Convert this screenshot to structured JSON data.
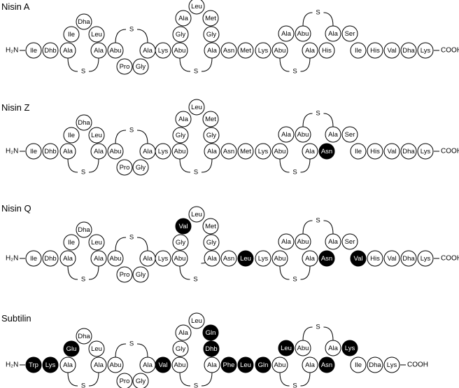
{
  "peptides": [
    {
      "title": "Nisin A",
      "n_terminus": "H₂N",
      "c_terminus": "COOH",
      "bridge_label": "S",
      "residues": [
        {
          "label": "Ile",
          "filled": false
        },
        {
          "label": "Dhb",
          "filled": false
        },
        {
          "label": "Ala",
          "filled": false
        },
        {
          "label": "Ile",
          "filled": false
        },
        {
          "label": "Dha",
          "filled": false
        },
        {
          "label": "Leu",
          "filled": false
        },
        {
          "label": "Ala",
          "filled": false
        },
        {
          "label": "Abu",
          "filled": false
        },
        {
          "label": "Pro",
          "filled": false
        },
        {
          "label": "Gly",
          "filled": false
        },
        {
          "label": "Ala",
          "filled": false
        },
        {
          "label": "Lys",
          "filled": false
        },
        {
          "label": "Abu",
          "filled": false
        },
        {
          "label": "Gly",
          "filled": false
        },
        {
          "label": "Ala",
          "filled": false
        },
        {
          "label": "Leu",
          "filled": false
        },
        {
          "label": "Met",
          "filled": false
        },
        {
          "label": "Gly",
          "filled": false
        },
        {
          "label": "Ala",
          "filled": false
        },
        {
          "label": "Asn",
          "filled": false
        },
        {
          "label": "Met",
          "filled": false
        },
        {
          "label": "Lys",
          "filled": false
        },
        {
          "label": "Abu",
          "filled": false
        },
        {
          "label": "Ala",
          "filled": false
        },
        {
          "label": "Abu",
          "filled": false
        },
        {
          "label": "Ala",
          "filled": false
        },
        {
          "label": "His",
          "filled": false
        },
        {
          "label": "Ala",
          "filled": false
        },
        {
          "label": "Ser",
          "filled": false
        },
        {
          "label": "Ile",
          "filled": false
        },
        {
          "label": "His",
          "filled": false
        },
        {
          "label": "Val",
          "filled": false
        },
        {
          "label": "Dha",
          "filled": false
        },
        {
          "label": "Lys",
          "filled": false
        }
      ]
    },
    {
      "title": "Nisin Z",
      "n_terminus": "H₂N",
      "c_terminus": "COOH",
      "bridge_label": "S",
      "residues": [
        {
          "label": "Ile",
          "filled": false
        },
        {
          "label": "Dhb",
          "filled": false
        },
        {
          "label": "Ala",
          "filled": false
        },
        {
          "label": "Ile",
          "filled": false
        },
        {
          "label": "Dha",
          "filled": false
        },
        {
          "label": "Leu",
          "filled": false
        },
        {
          "label": "Ala",
          "filled": false
        },
        {
          "label": "Abu",
          "filled": false
        },
        {
          "label": "Pro",
          "filled": false
        },
        {
          "label": "Gly",
          "filled": false
        },
        {
          "label": "Ala",
          "filled": false
        },
        {
          "label": "Lys",
          "filled": false
        },
        {
          "label": "Abu",
          "filled": false
        },
        {
          "label": "Gly",
          "filled": false
        },
        {
          "label": "Ala",
          "filled": false
        },
        {
          "label": "Leu",
          "filled": false
        },
        {
          "label": "Met",
          "filled": false
        },
        {
          "label": "Gly",
          "filled": false
        },
        {
          "label": "Ala",
          "filled": false
        },
        {
          "label": "Asn",
          "filled": false
        },
        {
          "label": "Met",
          "filled": false
        },
        {
          "label": "Lys",
          "filled": false
        },
        {
          "label": "Abu",
          "filled": false
        },
        {
          "label": "Ala",
          "filled": false
        },
        {
          "label": "Abu",
          "filled": false
        },
        {
          "label": "Ala",
          "filled": false
        },
        {
          "label": "Asn",
          "filled": true
        },
        {
          "label": "Ala",
          "filled": false
        },
        {
          "label": "Ser",
          "filled": false
        },
        {
          "label": "Ile",
          "filled": false
        },
        {
          "label": "His",
          "filled": false
        },
        {
          "label": "Val",
          "filled": false
        },
        {
          "label": "Dha",
          "filled": false
        },
        {
          "label": "Lys",
          "filled": false
        }
      ]
    },
    {
      "title": "Nisin Q",
      "n_terminus": "H₂N",
      "c_terminus": "COOH",
      "bridge_label": "S",
      "residues": [
        {
          "label": "Ile",
          "filled": false
        },
        {
          "label": "Dhb",
          "filled": false
        },
        {
          "label": "Ala",
          "filled": false
        },
        {
          "label": "Ile",
          "filled": false
        },
        {
          "label": "Dha",
          "filled": false
        },
        {
          "label": "Leu",
          "filled": false
        },
        {
          "label": "Ala",
          "filled": false
        },
        {
          "label": "Abu",
          "filled": false
        },
        {
          "label": "Pro",
          "filled": false
        },
        {
          "label": "Gly",
          "filled": false
        },
        {
          "label": "Ala",
          "filled": false
        },
        {
          "label": "Lys",
          "filled": false
        },
        {
          "label": "Abu",
          "filled": false
        },
        {
          "label": "Gly",
          "filled": false
        },
        {
          "label": "Ala",
          "filled": false
        },
        {
          "label": "Val",
          "filled": true
        },
        {
          "label": "Leu",
          "filled": false
        },
        {
          "label": "Met",
          "filled": false
        },
        {
          "label": "Gly",
          "filled": false
        },
        {
          "label": "Ala",
          "filled": false
        },
        {
          "label": "Asn",
          "filled": false
        },
        {
          "label": "Leu",
          "filled": true
        },
        {
          "label": "Lys",
          "filled": false
        },
        {
          "label": "Abu",
          "filled": false
        },
        {
          "label": "Ala",
          "filled": false
        },
        {
          "label": "Abu",
          "filled": false
        },
        {
          "label": "Ala",
          "filled": false
        },
        {
          "label": "Asn",
          "filled": true
        },
        {
          "label": "Ala",
          "filled": false
        },
        {
          "label": "Ser",
          "filled": false
        },
        {
          "label": "Val",
          "filled": true
        },
        {
          "label": "His",
          "filled": false
        },
        {
          "label": "Val",
          "filled": false
        },
        {
          "label": "Dha",
          "filled": false
        },
        {
          "label": "Lys",
          "filled": false
        }
      ]
    },
    {
      "title": "Subtilin",
      "n_terminus": "H₂N",
      "c_terminus": "COOH",
      "bridge_label": "S",
      "residues": [
        {
          "label": "Trp",
          "filled": true
        },
        {
          "label": "Lys",
          "filled": true
        },
        {
          "label": "Ala",
          "filled": false
        },
        {
          "label": "Glu",
          "filled": true
        },
        {
          "label": "Dha",
          "filled": false
        },
        {
          "label": "Leu",
          "filled": false
        },
        {
          "label": "Ala",
          "filled": false
        },
        {
          "label": "Abu",
          "filled": false
        },
        {
          "label": "Pro",
          "filled": false
        },
        {
          "label": "Gly",
          "filled": false
        },
        {
          "label": "Ala",
          "filled": false
        },
        {
          "label": "Val",
          "filled": true
        },
        {
          "label": "Abu",
          "filled": false
        },
        {
          "label": "Gly",
          "filled": false
        },
        {
          "label": "Ala",
          "filled": false
        },
        {
          "label": "Leu",
          "filled": false
        },
        {
          "label": "Gln",
          "filled": true
        },
        {
          "label": "Dhb",
          "filled": true
        },
        {
          "label": "Ala",
          "filled": false
        },
        {
          "label": "Phe",
          "filled": true
        },
        {
          "label": "Leu",
          "filled": true
        },
        {
          "label": "Gln",
          "filled": true
        },
        {
          "label": "Abu",
          "filled": false
        },
        {
          "label": "Leu",
          "filled": true
        },
        {
          "label": "Abu",
          "filled": false
        },
        {
          "label": "Ala",
          "filled": false
        },
        {
          "label": "Asn",
          "filled": true
        },
        {
          "label": "Ala",
          "filled": false
        },
        {
          "label": "Lys",
          "filled": true
        },
        {
          "label": "Ile",
          "filled": false
        },
        {
          "label": "Dha",
          "filled": false
        },
        {
          "label": "Lys",
          "filled": false
        }
      ]
    }
  ]
}
